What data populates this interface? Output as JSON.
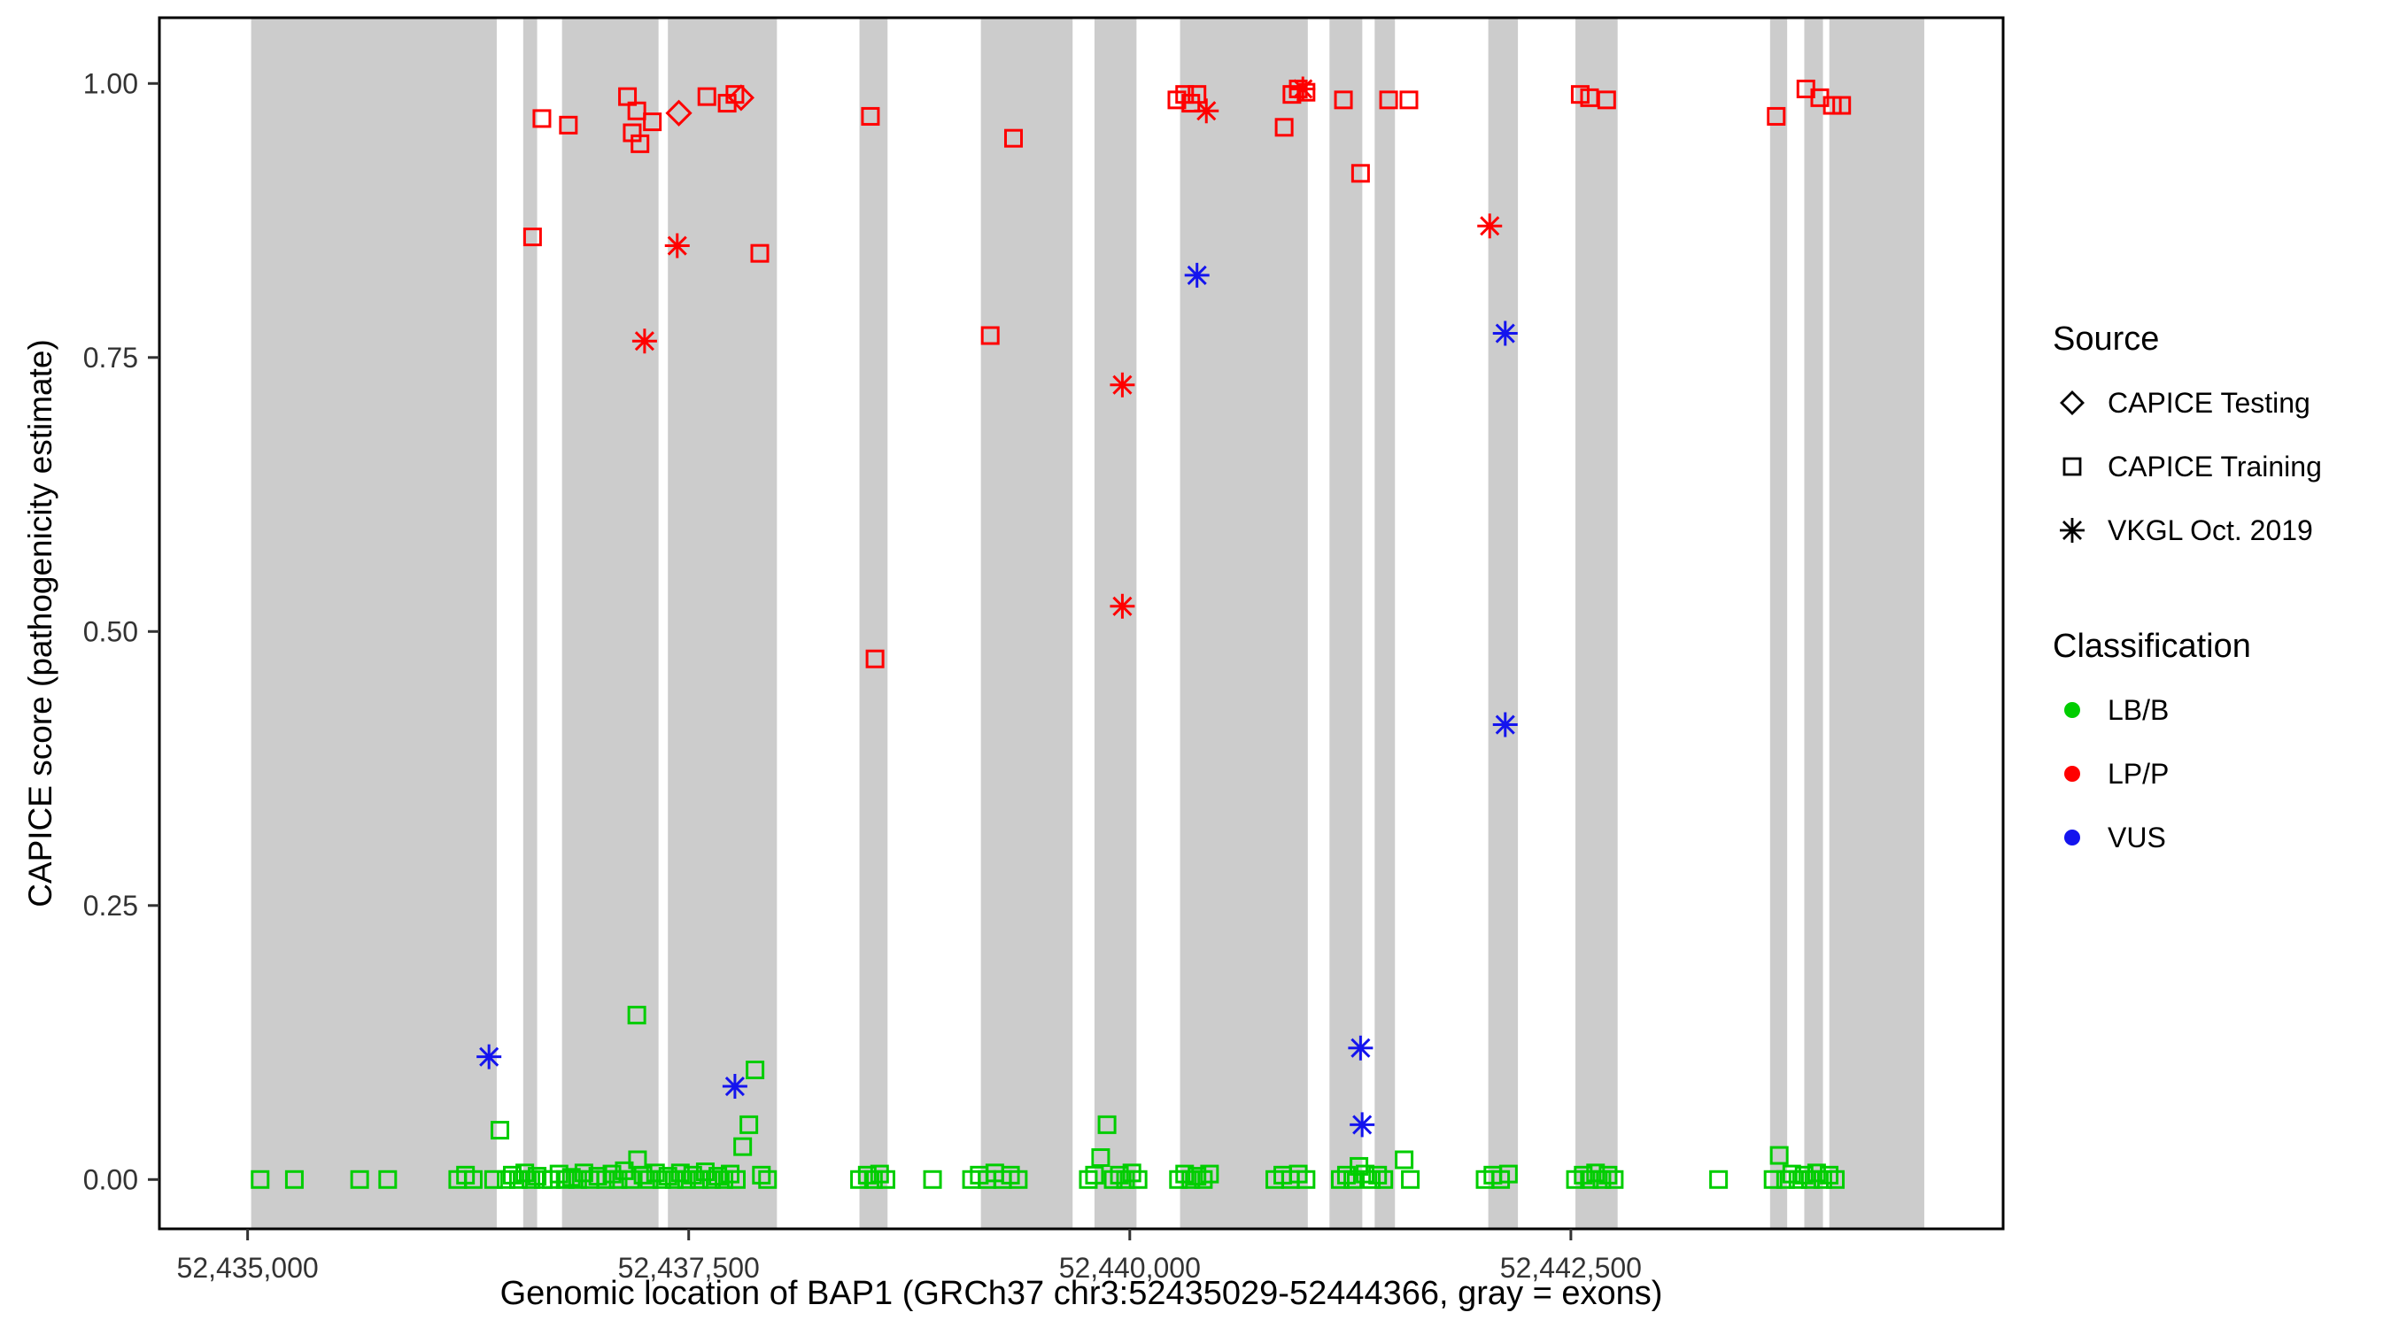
{
  "legend": {
    "source": {
      "title": "Source",
      "items": [
        {
          "label": "CAPICE Testing",
          "shape": "diamond"
        },
        {
          "label": "CAPICE Training",
          "shape": "square"
        },
        {
          "label": "VKGL Oct. 2019",
          "shape": "asterisk"
        }
      ]
    },
    "classification": {
      "title": "Classification",
      "items": [
        {
          "label": "LB/B",
          "color": "#00CD00"
        },
        {
          "label": "LP/P",
          "color": "#FF0000"
        },
        {
          "label": "VUS",
          "color": "#1414EE"
        }
      ]
    }
  },
  "chart_data": {
    "type": "scatter",
    "title": "",
    "xlabel": "Genomic location of BAP1 (GRCh37 chr3:52435029-52444366, gray = exons)",
    "ylabel": "CAPICE score (pathogenicity estimate)",
    "xlim": [
      52434500,
      52444950
    ],
    "ylim": [
      -0.045,
      1.06
    ],
    "grid": false,
    "legend_position": "right",
    "exon_color": "#CCCCCC",
    "x_ticks": [
      {
        "value": 52435000,
        "label": "52,435,000"
      },
      {
        "value": 52437500,
        "label": "52,437,500"
      },
      {
        "value": 52440000,
        "label": "52,440,000"
      },
      {
        "value": 52442500,
        "label": "52,442,500"
      }
    ],
    "y_ticks": [
      {
        "value": 0.0,
        "label": "0.00"
      },
      {
        "value": 0.25,
        "label": "0.25"
      },
      {
        "value": 0.5,
        "label": "0.50"
      },
      {
        "value": 0.75,
        "label": "0.75"
      },
      {
        "value": 1.0,
        "label": "1.00"
      }
    ],
    "exons": [
      [
        52435020,
        52436412
      ],
      [
        52436562,
        52436641
      ],
      [
        52436782,
        52437329
      ],
      [
        52437382,
        52438000
      ],
      [
        52438468,
        52438627
      ],
      [
        52439156,
        52439676
      ],
      [
        52439800,
        52440038
      ],
      [
        52440285,
        52441009
      ],
      [
        52441132,
        52441318
      ],
      [
        52441388,
        52441503
      ],
      [
        52442032,
        52442200
      ],
      [
        52442526,
        52442765
      ],
      [
        52443629,
        52443726
      ],
      [
        52443823,
        52443929
      ],
      [
        52443965,
        52444503
      ]
    ],
    "series": [
      {
        "name": "CAPICE Training / LP/P",
        "source": "CAPICE Training",
        "classification": "LP/P",
        "shape": "square",
        "color": "#FF0000",
        "points": [
          [
            52436615,
            0.86
          ],
          [
            52436668,
            0.968
          ],
          [
            52436818,
            0.962
          ],
          [
            52437153,
            0.988
          ],
          [
            52437180,
            0.955
          ],
          [
            52437206,
            0.975
          ],
          [
            52437224,
            0.945
          ],
          [
            52437294,
            0.965
          ],
          [
            52437603,
            0.988
          ],
          [
            52437718,
            0.982
          ],
          [
            52437762,
            0.99
          ],
          [
            52437903,
            0.845
          ],
          [
            52438530,
            0.97
          ],
          [
            52438556,
            0.475
          ],
          [
            52439209,
            0.77
          ],
          [
            52439341,
            0.95
          ],
          [
            52440267,
            0.985
          ],
          [
            52440311,
            0.99
          ],
          [
            52440346,
            0.982
          ],
          [
            52440381,
            0.99
          ],
          [
            52440875,
            0.96
          ],
          [
            52440919,
            0.99
          ],
          [
            52440955,
            0.995
          ],
          [
            52440999,
            0.992
          ],
          [
            52441211,
            0.985
          ],
          [
            52441308,
            0.918
          ],
          [
            52441467,
            0.985
          ],
          [
            52441582,
            0.985
          ],
          [
            52442553,
            0.99
          ],
          [
            52442606,
            0.987
          ],
          [
            52442703,
            0.985
          ],
          [
            52443664,
            0.97
          ],
          [
            52443832,
            0.995
          ],
          [
            52443911,
            0.987
          ],
          [
            52443982,
            0.98
          ],
          [
            52444035,
            0.98
          ]
        ]
      },
      {
        "name": "CAPICE Testing / LP/P",
        "source": "CAPICE Testing",
        "classification": "LP/P",
        "shape": "diamond",
        "color": "#FF0000",
        "points": [
          [
            52437444,
            0.973
          ],
          [
            52437797,
            0.987
          ]
        ]
      },
      {
        "name": "VKGL Oct. 2019 / LP/P",
        "source": "VKGL Oct. 2019",
        "classification": "LP/P",
        "shape": "asterisk",
        "color": "#FF0000",
        "points": [
          [
            52437250,
            0.765
          ],
          [
            52437435,
            0.852
          ],
          [
            52439958,
            0.725
          ],
          [
            52439958,
            0.523
          ],
          [
            52440434,
            0.975
          ],
          [
            52440981,
            0.995
          ],
          [
            52442040,
            0.87
          ]
        ]
      },
      {
        "name": "VKGL Oct. 2019 / VUS",
        "source": "VKGL Oct. 2019",
        "classification": "VUS",
        "shape": "asterisk",
        "color": "#1414EE",
        "points": [
          [
            52436368,
            0.112
          ],
          [
            52437762,
            0.085
          ],
          [
            52440381,
            0.825
          ],
          [
            52441308,
            0.12
          ],
          [
            52441317,
            0.05
          ],
          [
            52442128,
            0.772
          ],
          [
            52442128,
            0.415
          ]
        ]
      },
      {
        "name": "CAPICE Training / LB/B",
        "source": "CAPICE Training",
        "classification": "LB/B",
        "shape": "square",
        "color": "#00CD00",
        "points": [
          [
            52435071,
            0
          ],
          [
            52435265,
            0
          ],
          [
            52435635,
            0
          ],
          [
            52435794,
            0
          ],
          [
            52436191,
            0
          ],
          [
            52436235,
            0.004
          ],
          [
            52436279,
            0
          ],
          [
            52436394,
            0
          ],
          [
            52436430,
            0.045
          ],
          [
            52436465,
            0
          ],
          [
            52436500,
            0.004
          ],
          [
            52436535,
            0
          ],
          [
            52436571,
            0.006
          ],
          [
            52436606,
            0
          ],
          [
            52436641,
            0.003
          ],
          [
            52436676,
            0
          ],
          [
            52436721,
            0
          ],
          [
            52436765,
            0.005
          ],
          [
            52436800,
            0
          ],
          [
            52436835,
            0.002
          ],
          [
            52436871,
            0
          ],
          [
            52436906,
            0.006
          ],
          [
            52436941,
            0
          ],
          [
            52436985,
            0.003
          ],
          [
            52437029,
            0
          ],
          [
            52437065,
            0.005
          ],
          [
            52437100,
            0
          ],
          [
            52437135,
            0.008
          ],
          [
            52437171,
            0
          ],
          [
            52437206,
            0.15
          ],
          [
            52437210,
            0.018
          ],
          [
            52437241,
            0.004
          ],
          [
            52437276,
            0
          ],
          [
            52437312,
            0.006
          ],
          [
            52437347,
            0
          ],
          [
            52437382,
            0.003
          ],
          [
            52437418,
            0
          ],
          [
            52437453,
            0.006
          ],
          [
            52437488,
            0
          ],
          [
            52437523,
            0.004
          ],
          [
            52437559,
            0
          ],
          [
            52437594,
            0.007
          ],
          [
            52437629,
            0
          ],
          [
            52437665,
            0.003
          ],
          [
            52437700,
            0
          ],
          [
            52437735,
            0.005
          ],
          [
            52437770,
            0
          ],
          [
            52437806,
            0.03
          ],
          [
            52437841,
            0.05
          ],
          [
            52437876,
            0.1
          ],
          [
            52437912,
            0.004
          ],
          [
            52437947,
            0
          ],
          [
            52438468,
            0
          ],
          [
            52438512,
            0.004
          ],
          [
            52438547,
            0
          ],
          [
            52438582,
            0.005
          ],
          [
            52438618,
            0
          ],
          [
            52438882,
            0
          ],
          [
            52439103,
            0
          ],
          [
            52439147,
            0.004
          ],
          [
            52439191,
            0
          ],
          [
            52439235,
            0.006
          ],
          [
            52439279,
            0
          ],
          [
            52439324,
            0.004
          ],
          [
            52439368,
            0
          ],
          [
            52439765,
            0
          ],
          [
            52439800,
            0.004
          ],
          [
            52439835,
            0.02
          ],
          [
            52439871,
            0.05
          ],
          [
            52439906,
            0
          ],
          [
            52439941,
            0.004
          ],
          [
            52439976,
            0
          ],
          [
            52440012,
            0.006
          ],
          [
            52440047,
            0
          ],
          [
            52440276,
            0
          ],
          [
            52440311,
            0.005
          ],
          [
            52440346,
            0
          ],
          [
            52440381,
            0.003
          ],
          [
            52440417,
            0
          ],
          [
            52440452,
            0.005
          ],
          [
            52440822,
            0
          ],
          [
            52440867,
            0.004
          ],
          [
            52440911,
            0
          ],
          [
            52440955,
            0.005
          ],
          [
            52440999,
            0
          ],
          [
            52441193,
            0
          ],
          [
            52441228,
            0.004
          ],
          [
            52441264,
            0
          ],
          [
            52441299,
            0.012
          ],
          [
            52441334,
            0.005
          ],
          [
            52441369,
            0
          ],
          [
            52441405,
            0.004
          ],
          [
            52441440,
            0
          ],
          [
            52441555,
            0.018
          ],
          [
            52441590,
            0
          ],
          [
            52442014,
            0
          ],
          [
            52442058,
            0.004
          ],
          [
            52442102,
            0
          ],
          [
            52442146,
            0.005
          ],
          [
            52442526,
            0
          ],
          [
            52442570,
            0.004
          ],
          [
            52442605,
            0
          ],
          [
            52442640,
            0.006
          ],
          [
            52442676,
            0
          ],
          [
            52442711,
            0.004
          ],
          [
            52442746,
            0
          ],
          [
            52443337,
            0
          ],
          [
            52443646,
            0
          ],
          [
            52443681,
            0.022
          ],
          [
            52443717,
            0
          ],
          [
            52443752,
            0.005
          ],
          [
            52443787,
            0
          ],
          [
            52443822,
            0.004
          ],
          [
            52443858,
            0
          ],
          [
            52443893,
            0.006
          ],
          [
            52443928,
            0
          ],
          [
            52443964,
            0.004
          ],
          [
            52443999,
            0
          ]
        ]
      }
    ]
  }
}
